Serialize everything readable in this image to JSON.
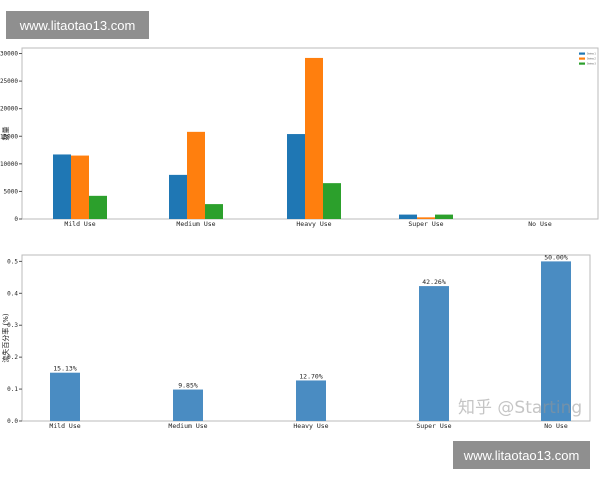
{
  "chart_data": [
    {
      "type": "bar",
      "title": "",
      "xlabel": "",
      "ylabel": "数量",
      "ylim": [
        0,
        31000
      ],
      "yticks": [
        0,
        5000,
        10000,
        15000,
        20000,
        25000,
        30000
      ],
      "categories": [
        "Mild Use",
        "Medium Use",
        "Heavy Use",
        "Super Use",
        "No Use"
      ],
      "series": [
        {
          "name": "Series 1",
          "color": "#1f77b4",
          "values": [
            11700,
            8000,
            15400,
            800,
            0
          ]
        },
        {
          "name": "Series 2",
          "color": "#ff7f0e",
          "values": [
            11500,
            15800,
            29200,
            300,
            0
          ]
        },
        {
          "name": "Series 3",
          "color": "#2ca02c",
          "values": [
            4200,
            2700,
            6500,
            800,
            0
          ]
        }
      ],
      "legend": "top-right",
      "grid": false
    },
    {
      "type": "bar",
      "title": "",
      "xlabel": "",
      "ylabel": "流失百分率 (%)",
      "ylim": [
        0,
        0.52
      ],
      "yticks": [
        0.0,
        0.1,
        0.2,
        0.3,
        0.4,
        0.5
      ],
      "categories": [
        "Mild Use",
        "Medium Use",
        "Heavy Use",
        "Super Use",
        "No Use"
      ],
      "values": [
        0.1513,
        0.0985,
        0.127,
        0.4226,
        0.5
      ],
      "data_labels": [
        "15.13%",
        "9.85%",
        "12.70%",
        "42.26%",
        "50.00%"
      ],
      "color": "#4a8cc2",
      "grid": false
    }
  ],
  "watermarks": {
    "top": "www.litaotao13.com",
    "bottom": "www.litaotao13.com",
    "zhihu": "知乎 @Starting"
  }
}
